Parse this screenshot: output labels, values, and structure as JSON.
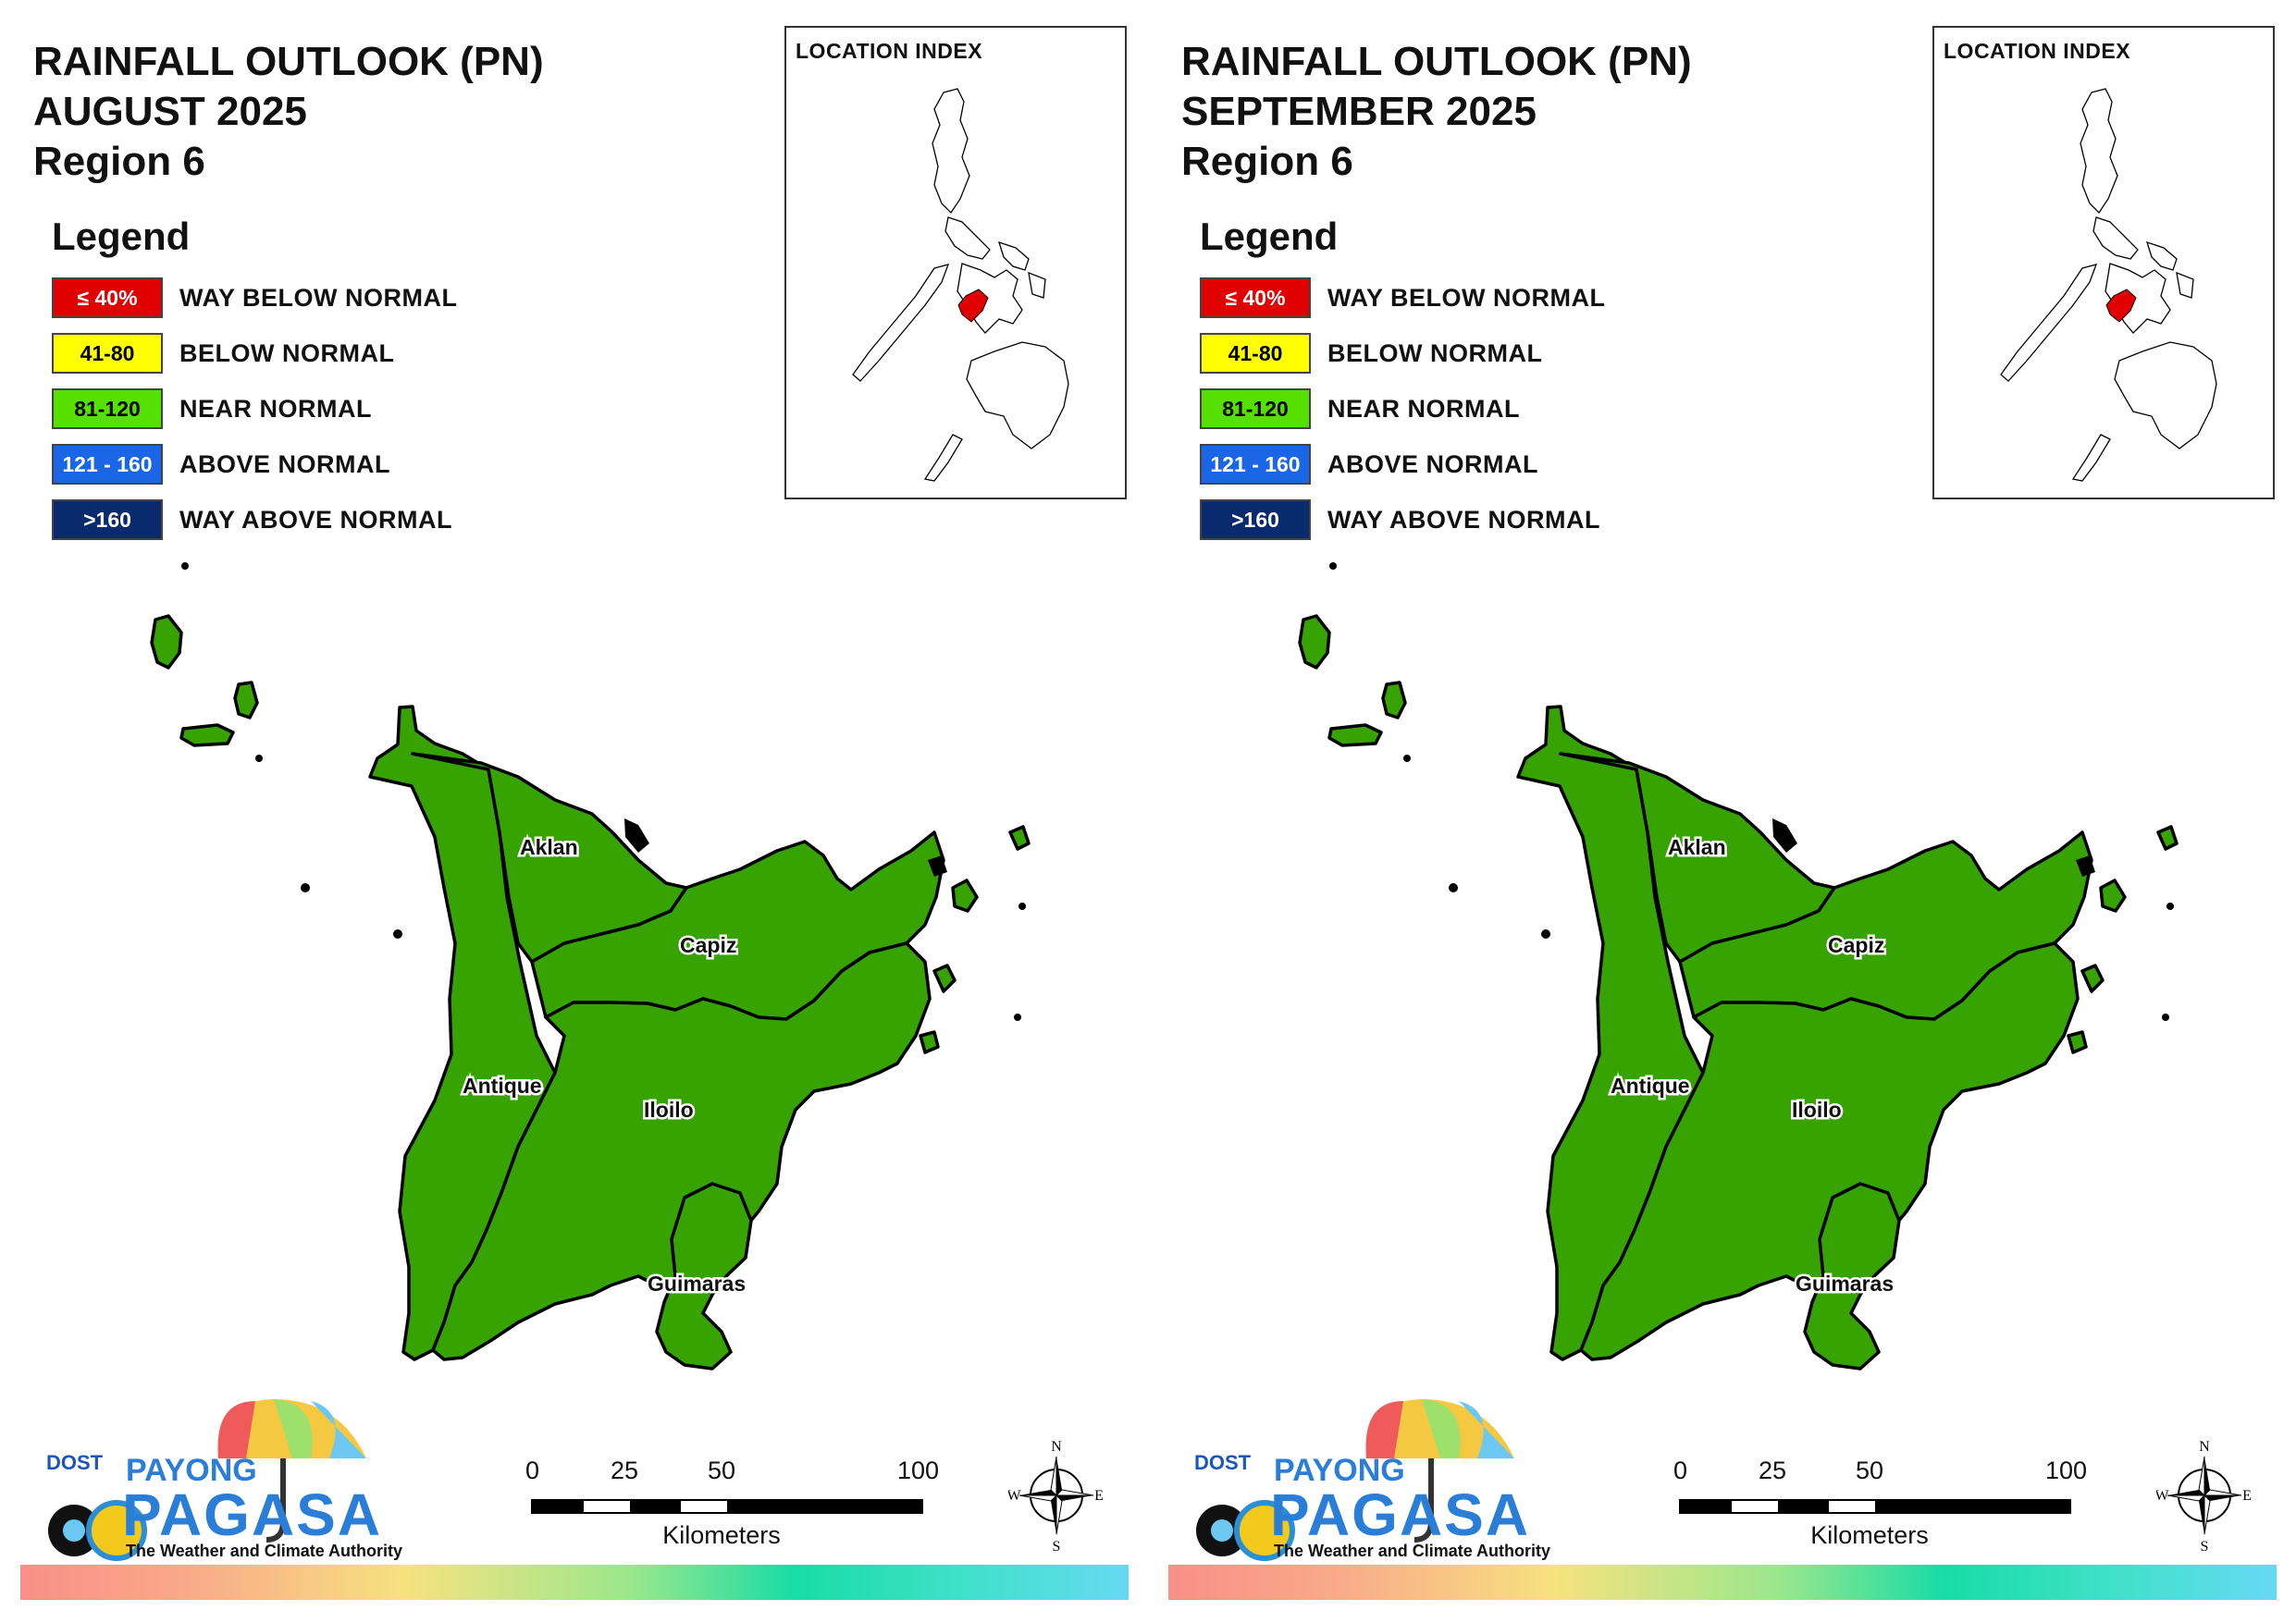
{
  "panels": [
    {
      "title": "RAINFALL OUTLOOK (PN)",
      "month": "AUGUST 2025",
      "region": "Region 6",
      "legend_heading": "Legend",
      "legend": [
        {
          "range": "≤ 40%",
          "label": "WAY BELOW NORMAL",
          "color": "#e00000",
          "text_color": "#ffffff"
        },
        {
          "range": "41-80",
          "label": "BELOW NORMAL",
          "color": "#ffff00",
          "text_color": "#000000"
        },
        {
          "range": "81-120",
          "label": "NEAR NORMAL",
          "color": "#55e000",
          "text_color": "#000000"
        },
        {
          "range": "121 - 160",
          "label": "ABOVE NORMAL",
          "color": "#1a66e6",
          "text_color": "#ffffff"
        },
        {
          "range": ">160",
          "label": "WAY ABOVE NORMAL",
          "color": "#0a2a6e",
          "text_color": "#ffffff"
        }
      ],
      "location_index_title": "LOCATION INDEX",
      "provinces": [
        "Aklan",
        "Capiz",
        "Antique",
        "Iloilo",
        "Guimaras"
      ],
      "province_fill": "#36a300",
      "logo": {
        "dost": "DOST",
        "payong": "PAYONG",
        "pagasa": "PAGASA",
        "tagline": "The Weather and Climate Authority"
      },
      "scale": {
        "ticks": [
          "0",
          "25",
          "50",
          "100"
        ],
        "unit": "Kilometers"
      },
      "compass": {
        "n": "N",
        "e": "E",
        "s": "S",
        "w": "W"
      }
    },
    {
      "title": "RAINFALL OUTLOOK (PN)",
      "month": "SEPTEMBER 2025",
      "region": "Region 6",
      "legend_heading": "Legend",
      "legend": [
        {
          "range": "≤ 40%",
          "label": "WAY BELOW NORMAL",
          "color": "#e00000",
          "text_color": "#ffffff"
        },
        {
          "range": "41-80",
          "label": "BELOW NORMAL",
          "color": "#ffff00",
          "text_color": "#000000"
        },
        {
          "range": "81-120",
          "label": "NEAR NORMAL",
          "color": "#55e000",
          "text_color": "#000000"
        },
        {
          "range": "121 - 160",
          "label": "ABOVE NORMAL",
          "color": "#1a66e6",
          "text_color": "#ffffff"
        },
        {
          "range": ">160",
          "label": "WAY ABOVE NORMAL",
          "color": "#0a2a6e",
          "text_color": "#ffffff"
        }
      ],
      "location_index_title": "LOCATION INDEX",
      "provinces": [
        "Aklan",
        "Capiz",
        "Antique",
        "Iloilo",
        "Guimaras"
      ],
      "province_fill": "#36a300",
      "logo": {
        "dost": "DOST",
        "payong": "PAYONG",
        "pagasa": "PAGASA",
        "tagline": "The Weather and Climate Authority"
      },
      "scale": {
        "ticks": [
          "0",
          "25",
          "50",
          "100"
        ],
        "unit": "Kilometers"
      },
      "compass": {
        "n": "N",
        "e": "E",
        "s": "S",
        "w": "W"
      }
    }
  ]
}
